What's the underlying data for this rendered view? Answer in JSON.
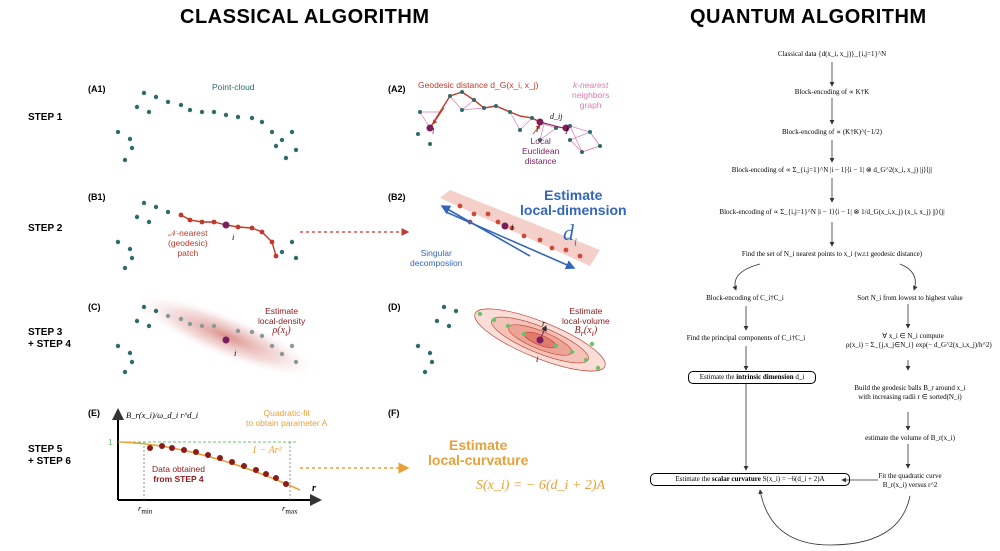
{
  "titles": {
    "classical": "CLASSICAL ALGORITHM",
    "quantum": "QUANTUM ALGORITHM"
  },
  "steps": {
    "s1": "STEP 1",
    "s2": "STEP 2",
    "s34a": "STEP 3",
    "s34b": "+ STEP 4",
    "s56a": "STEP 5",
    "s56b": "+ STEP 6"
  },
  "panels": {
    "A1": {
      "label": "(A1)",
      "caption": "Point-cloud"
    },
    "A2": {
      "label": "(A2)",
      "geodesic": "Geodesic distance d_G(x_i, x_j)",
      "knn1": "k-nearest",
      "knn2": "neighbors",
      "knn3": "graph",
      "i": "i",
      "j": "j",
      "l": "l",
      "dij": "d_ij",
      "local1": "Local",
      "local2": "Euclidean",
      "local3": "distance"
    },
    "B1": {
      "label": "(B1)",
      "patch1": "𝒩-nearest",
      "patch2": "(geodesic)",
      "patch3": "patch",
      "i": "i"
    },
    "B2": {
      "label": "(B2)",
      "est1": "Estimate",
      "est2": "local-dimension",
      "di": "d",
      "di_sub": "i",
      "svd1": "Singular",
      "svd2": "decomposiion",
      "i": "i"
    },
    "C": {
      "label": "(C)",
      "est1": "Estimate",
      "est2": "local-density",
      "rho": "ρ(x",
      "rho_sub": "i",
      "rho_end": ")",
      "i": "i"
    },
    "D": {
      "label": "(D)",
      "est1": "Estimate",
      "est2": "local-volume",
      "br": "B",
      "br_sub": "r",
      "br_end": "(x",
      "br_sub2": "i",
      "br_end2": ")",
      "r": "r",
      "i": "i"
    },
    "E": {
      "label": "(E)",
      "ylabel": "B_r(x_i)/ω_d_i r^d_i",
      "fit1": "Quadratic-fit",
      "fit2": "to obtain parameter A",
      "one": "1",
      "curve": "1 − Ar²",
      "data1": "Data obtained",
      "data2": "from STEP 4",
      "r": "r",
      "rmin": "r",
      "rmin_sub": "min",
      "rmax": "r",
      "rmax_sub": "max"
    },
    "F": {
      "label": "(F)",
      "est1": "Estimate",
      "est2": "local-curvature",
      "formula": "S(x_i) = − 6(d_i + 2)A"
    }
  },
  "quantum": {
    "n1": "Classical data {d(x_i, x_j)}_{i,j=1}^N",
    "n2": "Block-encoding of ∝ K†K",
    "n3": "Block-encoding of ∝ (K†K)^(−1/2)",
    "n4": "Block-encoding of ∝ Σ_{i,j=1}^N |i − 1⟩⟨i − 1| ⊗ d_G^2(x_i, x_j) |j⟩⟨j|",
    "n5": "Block-encoding of ∝ Σ_{i,j=1}^N |i − 1⟩⟨i − 1| ⊗ 1/d_G(x_i,x_j) (x_i, x_j) |j⟩⟨j|",
    "n6": "Find the set of N_i nearest points to x_i (w.r.t geodesic distance)",
    "n7": "Block-encoding of C_i†C_i",
    "n8": "Sort N_i from lowest to highest value",
    "n9": "Find the principal components of C_i†C_i",
    "n10a": "∀ x_i ∈ N_i compute",
    "n10b": "ρ(x_i) = Σ_{j,x_j∈N_i} exp(− d_G^2(x_i,x_j)/h^2)",
    "n11a": "Estimate the ",
    "n11b": "intrinsic dimension",
    "n11c": " d_i",
    "n12a": "Build the geodesic balls B_r around x_i",
    "n12b": "with increasing radii r ∈ sorted(N_i)",
    "n13": "estimate the volume of B_r(x_i)",
    "n14a": "Estimate the ",
    "n14b": "scalar curvature",
    "n14c": " S(x_i) = −6(d_i + 2)A",
    "n15a": "Fit the quadratic curve",
    "n15b": "B_r(x_i) versus r^2"
  },
  "colors": {
    "teal": "#2e6b6b",
    "red": "#c0392b",
    "darkred": "#8b1a1a",
    "purple": "#7a1f5c",
    "pink": "#e07bb0",
    "blue": "#3366bb",
    "orange": "#e8a13a",
    "green": "#6cc06c"
  }
}
